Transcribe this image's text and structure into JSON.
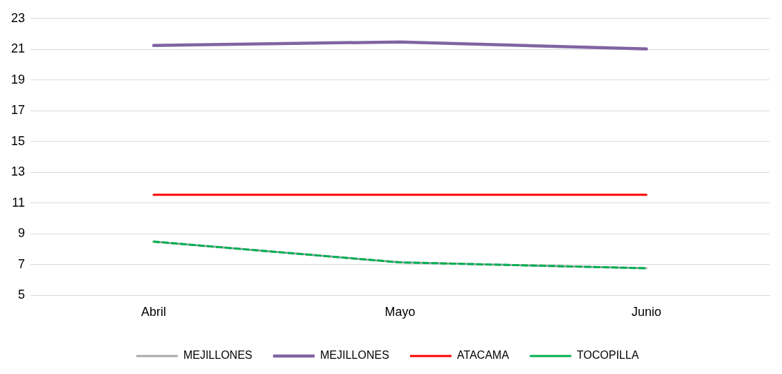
{
  "chart_data": {
    "type": "line",
    "categories": [
      "Abril",
      "Mayo",
      "Junio"
    ],
    "ylim": [
      5,
      23
    ],
    "yticks": [
      5,
      7,
      9,
      11,
      13,
      15,
      17,
      19,
      21,
      23
    ],
    "grid": "y",
    "legend": "bottom",
    "marker": "none",
    "series": [
      {
        "name": "MEJILLONES",
        "color": "#a5a9ae",
        "values": [
          8.5,
          7.15,
          6.77
        ],
        "line_style": "solid"
      },
      {
        "name": "MEJILLONES",
        "color": "#8064a2",
        "values": [
          21.25,
          21.48,
          21.02
        ],
        "line_style": "solid"
      },
      {
        "name": "ATACAMA",
        "color": "#ff0000",
        "values": [
          11.55,
          11.55,
          11.55
        ],
        "line_style": "solid"
      },
      {
        "name": "TOCOPILLA",
        "color": "#00b050",
        "values": [
          8.5,
          7.15,
          6.77
        ],
        "line_style": "dashed"
      }
    ]
  }
}
